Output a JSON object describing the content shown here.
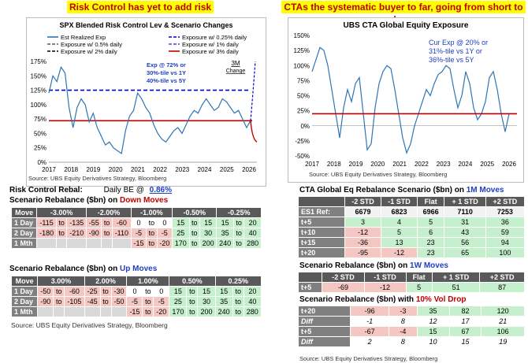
{
  "headlines": {
    "left": "Risk Control has yet to add risk",
    "right": "CTAs the systematic buyer to far, going from short to long"
  },
  "left_chart": {
    "title": "SPX Blended Risk Control Lev  & Scenario Changes",
    "legend": [
      "Est Realized Exp",
      "Exposure w/ 0.25% daily",
      "Exposure w/ 0.5% daily",
      "Exposure w/ 1% daily",
      "Exposure w/ 2% daily",
      "Exposure w/ 3% daily"
    ],
    "annotation": "Exp @ 72% or 30%-tile vs 1Y 40%-tile vs 5Y",
    "annotation_lines": [
      "Exp @ 72% or",
      "30%-tile vs 1Y",
      "40%-tile vs 5Y"
    ],
    "change_label_1": "3M",
    "change_label_2": "Change",
    "source": "Source: UBS Equity Derivatives Strategy, Bloomberg",
    "colors": {
      "line": "#2e75b6",
      "ref": "#c00000",
      "dash": "#0000cc"
    }
  },
  "right_chart": {
    "title": "UBS CTA Global Equity Exposure",
    "annotation_lines": [
      "Cur Exp @ 20% or",
      "31%-tile vs 1Y or",
      "36%-tile vs 5Y"
    ],
    "source": "Source: UBS Equity Derivatives Strategy, Bloomberg"
  },
  "chart_data": [
    {
      "type": "line",
      "title": "SPX Blended Risk Control Lev  & Scenario Changes",
      "xticks": [
        "2017",
        "2018",
        "2019",
        "2020",
        "2021",
        "2022",
        "2023",
        "2024",
        "2025",
        "2026"
      ],
      "yticks": [
        "0%",
        "25%",
        "50%",
        "75%",
        "100%",
        "125%",
        "150%",
        "175%"
      ],
      "ylim": [
        0,
        175
      ],
      "series": [
        {
          "name": "Est Realized Exp",
          "values": [
            120,
            150,
            140,
            165,
            155,
            95,
            60,
            95,
            110,
            100,
            70,
            85,
            60,
            45,
            30,
            35,
            25,
            20,
            15,
            55,
            80,
            90,
            120,
            110,
            95,
            85,
            65,
            50,
            40,
            35,
            45,
            55,
            60,
            50,
            65,
            80,
            90,
            85,
            100,
            110,
            100,
            90,
            95,
            110,
            105,
            95,
            85,
            90,
            75,
            60,
            72
          ]
        },
        {
          "name": "Exposure w/ 0.25% daily",
          "values": [
            125,
            125
          ]
        }
      ],
      "reference_line": 72
    },
    {
      "type": "line",
      "title": "UBS CTA Global Equity Exposure",
      "xticks": [
        "2017",
        "2018",
        "2019",
        "2020",
        "2021",
        "2022",
        "2023",
        "2024",
        "2025",
        "2026"
      ],
      "yticks": [
        "-50%",
        "-25%",
        "0%",
        "25%",
        "50%",
        "75%",
        "100%",
        "125%",
        "150%"
      ],
      "ylim": [
        -50,
        150
      ],
      "series": [
        {
          "name": "CTA Exposure",
          "values": [
            90,
            110,
            130,
            125,
            100,
            60,
            20,
            -20,
            30,
            60,
            40,
            70,
            80,
            20,
            -40,
            -30,
            30,
            70,
            90,
            100,
            95,
            60,
            20,
            -20,
            -45,
            -30,
            0,
            20,
            40,
            60,
            50,
            70,
            85,
            90,
            100,
            95,
            60,
            30,
            50,
            90,
            70,
            30,
            10,
            20,
            40,
            80,
            90,
            60,
            20,
            -10,
            20
          ]
        }
      ],
      "reference_line": 20
    }
  ],
  "rebal": {
    "title": "Risk Control Rebal:",
    "daily_be_label": "Daily BE @",
    "daily_be_value": "0.86%",
    "down_title_prefix": "Scenario Rebalance ($bn) on ",
    "down_title_suffix": "Down Moves",
    "down_header": [
      "Move",
      "-3.00%",
      "-2.00%",
      "-1.00%",
      "-0.50%",
      "-0.25%"
    ],
    "down_rows": [
      {
        "label": "1 Day",
        "cells": [
          "-115",
          "to",
          "-135",
          "-55",
          "to",
          "-60",
          "0",
          "to",
          "0",
          "15",
          "to",
          "15",
          "15",
          "to",
          "20"
        ]
      },
      {
        "label": "2 Day",
        "cells": [
          "-180",
          "to",
          "-210",
          "-90",
          "to",
          "-110",
          "-5",
          "to",
          "-5",
          "25",
          "to",
          "30",
          "35",
          "to",
          "40"
        ]
      },
      {
        "label": "1 Mth",
        "cells": [
          "",
          "",
          "",
          "",
          "",
          "",
          "-15",
          "to",
          "-20",
          "170",
          "to",
          "200",
          "240",
          "to",
          "280"
        ]
      }
    ],
    "up_title_prefix": "Scenario Rebalance ($bn) on ",
    "up_title_suffix": "Up Moves",
    "up_header": [
      "Move",
      "3.00%",
      "2.00%",
      "1.00%",
      "0.50%",
      "0.25%"
    ],
    "up_rows": [
      {
        "label": "1 Day",
        "cells": [
          "-50",
          "to",
          "-60",
          "-25",
          "to",
          "-30",
          "0",
          "to",
          "0",
          "15",
          "to",
          "15",
          "15",
          "to",
          "20"
        ]
      },
      {
        "label": "2 Day",
        "cells": [
          "-90",
          "to",
          "-105",
          "-45",
          "to",
          "-50",
          "-5",
          "to",
          "-5",
          "25",
          "to",
          "30",
          "35",
          "to",
          "40"
        ]
      },
      {
        "label": "1 Mth",
        "cells": [
          "",
          "",
          "",
          "",
          "",
          "",
          "-15",
          "to",
          "-20",
          "170",
          "to",
          "200",
          "240",
          "to",
          "280"
        ]
      }
    ],
    "source": "Source: UBS Equity Derivatives Strategy, Bloomberg"
  },
  "cta": {
    "title_prefix": "CTA Global Eq Rebalance Scenario ($bn) on ",
    "title_suffix": "1M Moves",
    "header": [
      "",
      "-2 STD",
      "-1 STD",
      "Flat",
      "+ 1 STD",
      "+2 STD"
    ],
    "ref_row": {
      "label": "ES1 Ref:",
      "cells": [
        "6679",
        "6823",
        "6966",
        "7110",
        "7253"
      ]
    },
    "rows": [
      {
        "label": "t+5",
        "cells": [
          "3",
          "4",
          "5",
          "31",
          "36"
        ]
      },
      {
        "label": "t+10",
        "cells": [
          "-12",
          "5",
          "6",
          "43",
          "59"
        ]
      },
      {
        "label": "t+15",
        "cells": [
          "-36",
          "13",
          "23",
          "56",
          "94"
        ]
      },
      {
        "label": "t+20",
        "cells": [
          "-95",
          "-12",
          "23",
          "65",
          "100"
        ]
      }
    ],
    "w_title_prefix": "Scenario Rebalance ($bn) on ",
    "w_title_suffix": "1W Moves",
    "w_header": [
      "",
      "-2 STD",
      "-1 STD",
      "Flat",
      "+ 1 STD",
      "+2 STD"
    ],
    "w_rows": [
      {
        "label": "t+5",
        "cells": [
          "-69",
          "-12",
          "5",
          "51",
          "87"
        ]
      }
    ],
    "vol_title_prefix": "Scenario Rebalance ($bn) with ",
    "vol_title_suffix": "10% Vol Drop",
    "vol_rows": [
      {
        "label": "t+20",
        "cells": [
          "-96",
          "-3",
          "35",
          "82",
          "120"
        ]
      },
      {
        "label": "Diff",
        "cells": [
          "-1",
          "8",
          "12",
          "17",
          "21"
        ]
      },
      {
        "label": "t+5",
        "cells": [
          "-67",
          "-4",
          "15",
          "67",
          "106"
        ]
      },
      {
        "label": "Diff",
        "cells": [
          "2",
          "8",
          "10",
          "15",
          "19"
        ]
      }
    ],
    "source": "Source: UBS Equity Derivatives Strategy, Bloomberg"
  }
}
